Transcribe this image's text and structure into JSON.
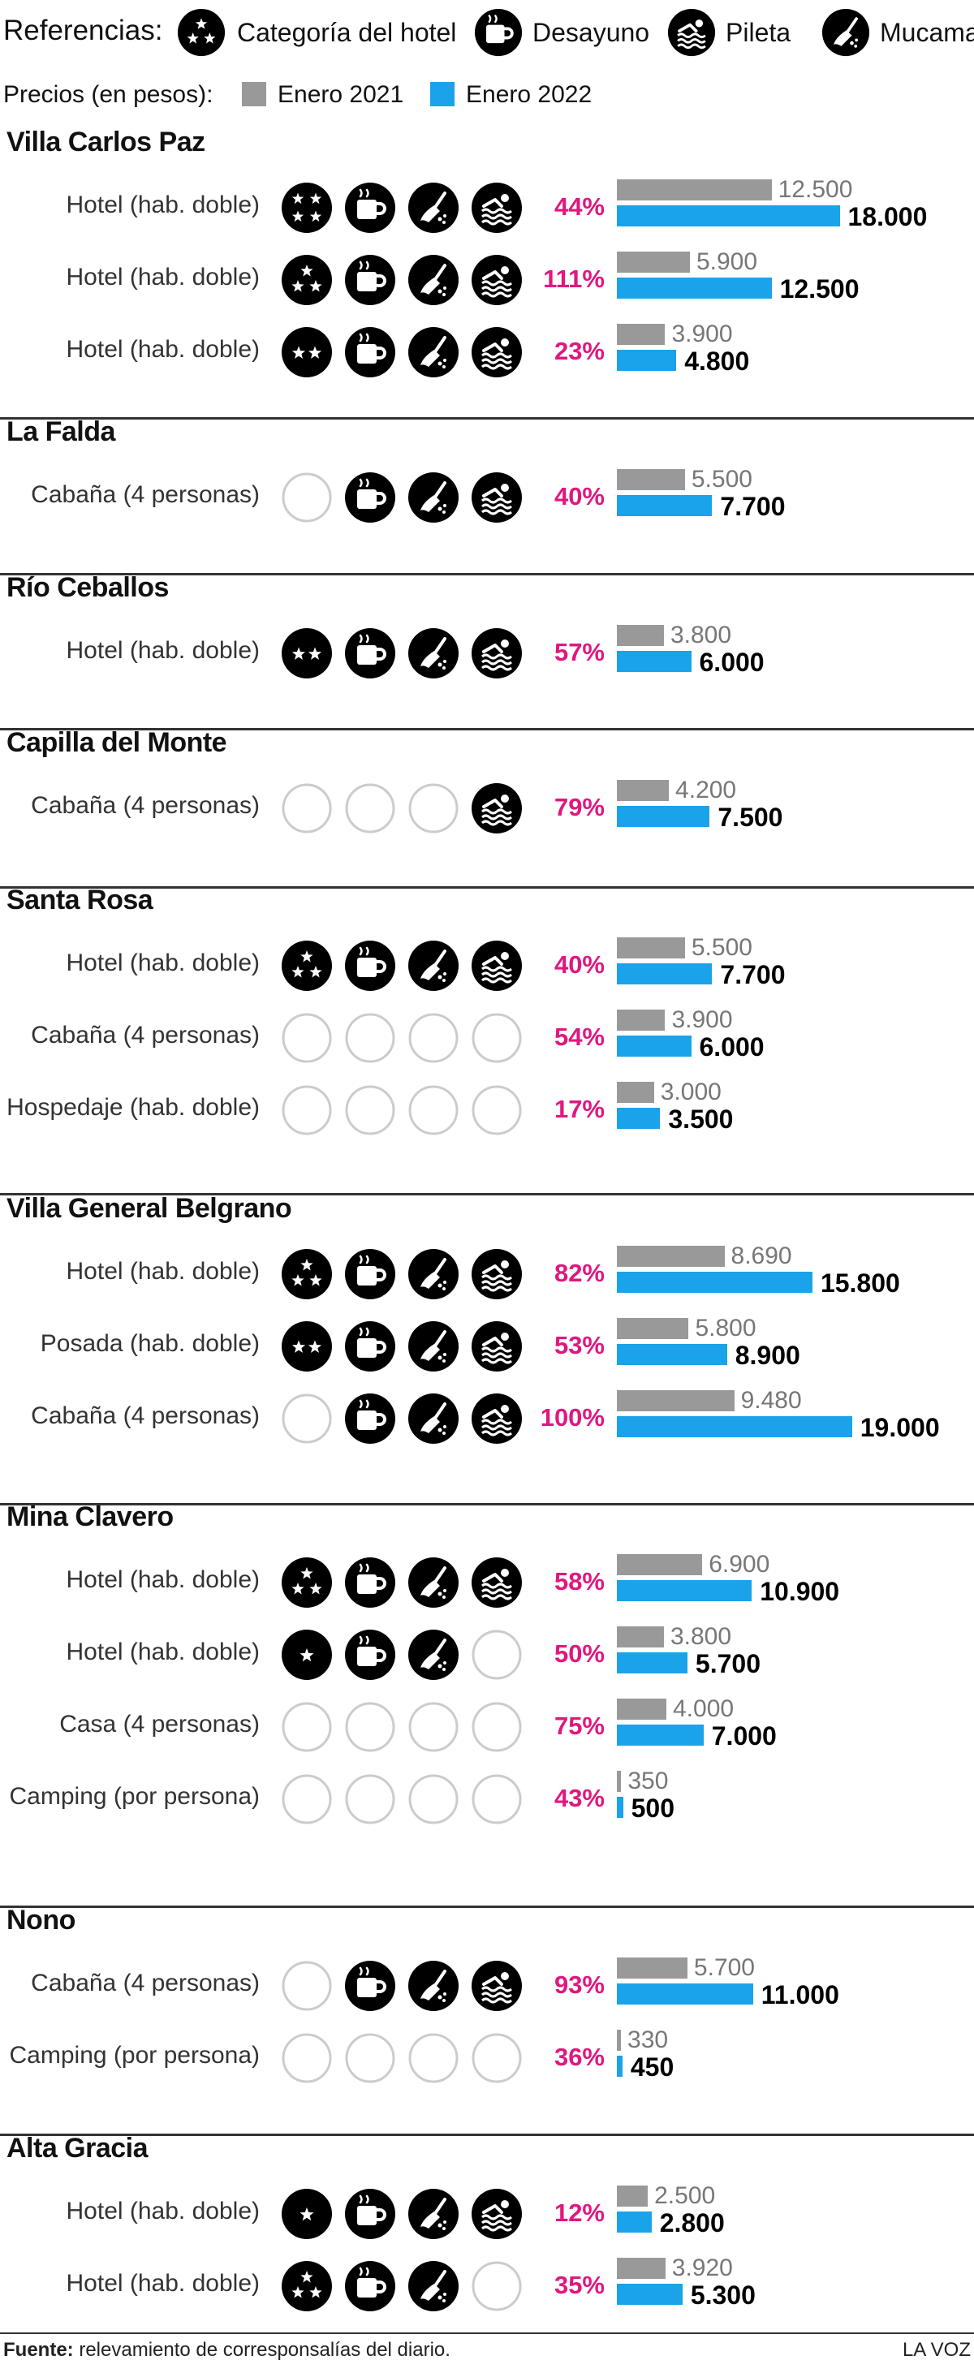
{
  "legend": {
    "title": "Referencias:",
    "items": [
      {
        "icon": "stars-icon",
        "label": "Categoría del hotel"
      },
      {
        "icon": "coffee-cup-icon",
        "label": "Desayuno"
      },
      {
        "icon": "swimmer-icon",
        "label": "Pileta"
      },
      {
        "icon": "broom-icon",
        "label": "Mucama"
      }
    ],
    "prices_label": "Precios (en pesos):",
    "series": [
      {
        "label": "Enero 2021",
        "color": "#999999"
      },
      {
        "label": "Enero 2022",
        "color": "#1aa3e8"
      }
    ]
  },
  "colors": {
    "pct": "#e0177f",
    "icon_fill": "#000000",
    "icon_empty_stroke": "#cccccc"
  },
  "chart_data": {
    "type": "bar",
    "orientation": "horizontal",
    "series_names": [
      "Enero 2021",
      "Enero 2022"
    ],
    "groups": [
      {
        "city": "Villa Carlos Paz",
        "rows": [
          {
            "label": "Hotel (hab. doble)",
            "stars": 4,
            "desayuno": true,
            "mucama": true,
            "pileta": true,
            "pct": "44%",
            "v2021": 12500,
            "v2022": 18000,
            "v2021_label": "12.500",
            "v2022_label": "18.000"
          },
          {
            "label": "Hotel (hab. doble)",
            "stars": 3,
            "desayuno": true,
            "mucama": true,
            "pileta": true,
            "pct": "111%",
            "v2021": 5900,
            "v2022": 12500,
            "v2021_label": "5.900",
            "v2022_label": "12.500"
          },
          {
            "label": "Hotel (hab. doble)",
            "stars": 2,
            "desayuno": true,
            "mucama": true,
            "pileta": true,
            "pct": "23%",
            "v2021": 3900,
            "v2022": 4800,
            "v2021_label": "3.900",
            "v2022_label": "4.800"
          }
        ]
      },
      {
        "city": "La Falda",
        "rows": [
          {
            "label": "Cabaña (4 personas)",
            "stars": 0,
            "desayuno": true,
            "mucama": true,
            "pileta": true,
            "pct": "40%",
            "v2021": 5500,
            "v2022": 7700,
            "v2021_label": "5.500",
            "v2022_label": "7.700"
          }
        ]
      },
      {
        "city": "Río Ceballos",
        "rows": [
          {
            "label": "Hotel (hab. doble)",
            "stars": 2,
            "desayuno": true,
            "mucama": true,
            "pileta": true,
            "pct": "57%",
            "v2021": 3800,
            "v2022": 6000,
            "v2021_label": "3.800",
            "v2022_label": "6.000"
          }
        ]
      },
      {
        "city": "Capilla del Monte",
        "rows": [
          {
            "label": "Cabaña (4 personas)",
            "stars": 0,
            "desayuno": false,
            "mucama": false,
            "pileta": true,
            "pct": "79%",
            "v2021": 4200,
            "v2022": 7500,
            "v2021_label": "4.200",
            "v2022_label": "7.500"
          }
        ]
      },
      {
        "city": "Santa Rosa",
        "rows": [
          {
            "label": "Hotel (hab. doble)",
            "stars": 3,
            "desayuno": true,
            "mucama": true,
            "pileta": true,
            "pct": "40%",
            "v2021": 5500,
            "v2022": 7700,
            "v2021_label": "5.500",
            "v2022_label": "7.700"
          },
          {
            "label": "Cabaña (4 personas)",
            "stars": 0,
            "desayuno": false,
            "mucama": false,
            "pileta": false,
            "pct": "54%",
            "v2021": 3900,
            "v2022": 6000,
            "v2021_label": "3.900",
            "v2022_label": "6.000"
          },
          {
            "label": "Hospedaje (hab. doble)",
            "stars": 0,
            "desayuno": false,
            "mucama": false,
            "pileta": false,
            "pct": "17%",
            "v2021": 3000,
            "v2022": 3500,
            "v2021_label": "3.000",
            "v2022_label": "3.500"
          }
        ]
      },
      {
        "city": "Villa General Belgrano",
        "rows": [
          {
            "label": "Hotel (hab. doble)",
            "stars": 3,
            "desayuno": true,
            "mucama": true,
            "pileta": true,
            "pct": "82%",
            "v2021": 8690,
            "v2022": 15800,
            "v2021_label": "8.690",
            "v2022_label": "15.800"
          },
          {
            "label": "Posada (hab. doble)",
            "stars": 2,
            "desayuno": true,
            "mucama": true,
            "pileta": true,
            "pct": "53%",
            "v2021": 5800,
            "v2022": 8900,
            "v2021_label": "5.800",
            "v2022_label": "8.900"
          },
          {
            "label": "Cabaña (4 personas)",
            "stars": 0,
            "desayuno": true,
            "mucama": true,
            "pileta": true,
            "pct": "100%",
            "v2021": 9480,
            "v2022": 19000,
            "v2021_label": "9.480",
            "v2022_label": "19.000"
          }
        ]
      },
      {
        "city": "Mina Clavero",
        "rows": [
          {
            "label": "Hotel (hab. doble)",
            "stars": 3,
            "desayuno": true,
            "mucama": true,
            "pileta": true,
            "pct": "58%",
            "v2021": 6900,
            "v2022": 10900,
            "v2021_label": "6.900",
            "v2022_label": "10.900"
          },
          {
            "label": "Hotel (hab. doble)",
            "stars": 1,
            "desayuno": true,
            "mucama": true,
            "pileta": false,
            "pct": "50%",
            "v2021": 3800,
            "v2022": 5700,
            "v2021_label": "3.800",
            "v2022_label": "5.700"
          },
          {
            "label": "Casa (4 personas)",
            "stars": 0,
            "desayuno": false,
            "mucama": false,
            "pileta": false,
            "pct": "75%",
            "v2021": 4000,
            "v2022": 7000,
            "v2021_label": "4.000",
            "v2022_label": "7.000"
          },
          {
            "label": "Camping (por persona)",
            "stars": 0,
            "desayuno": false,
            "mucama": false,
            "pileta": false,
            "pct": "43%",
            "v2021": 350,
            "v2022": 500,
            "v2021_label": "350",
            "v2022_label": "500"
          }
        ]
      },
      {
        "city": "Nono",
        "rows": [
          {
            "label": "Cabaña (4 personas)",
            "stars": 0,
            "desayuno": true,
            "mucama": true,
            "pileta": true,
            "pct": "93%",
            "v2021": 5700,
            "v2022": 11000,
            "v2021_label": "5.700",
            "v2022_label": "11.000"
          },
          {
            "label": "Camping (por persona)",
            "stars": 0,
            "desayuno": false,
            "mucama": false,
            "pileta": false,
            "pct": "36%",
            "v2021": 330,
            "v2022": 450,
            "v2021_label": "330",
            "v2022_label": "450"
          }
        ]
      },
      {
        "city": "Alta Gracia",
        "rows": [
          {
            "label": "Hotel (hab. doble)",
            "stars": 1,
            "desayuno": true,
            "mucama": true,
            "pileta": true,
            "pct": "12%",
            "v2021": 2500,
            "v2022": 2800,
            "v2021_label": "2.500",
            "v2022_label": "2.800"
          },
          {
            "label": "Hotel (hab. doble)",
            "stars": 3,
            "desayuno": true,
            "mucama": true,
            "pileta": false,
            "pct": "35%",
            "v2021": 3920,
            "v2022": 5300,
            "v2021_label": "3.920",
            "v2022_label": "5.300"
          }
        ]
      }
    ]
  },
  "footer": {
    "source_label": "Fuente:",
    "source_text": "relevamiento de corresponsalías del diario.",
    "brand": "LA VOZ"
  }
}
